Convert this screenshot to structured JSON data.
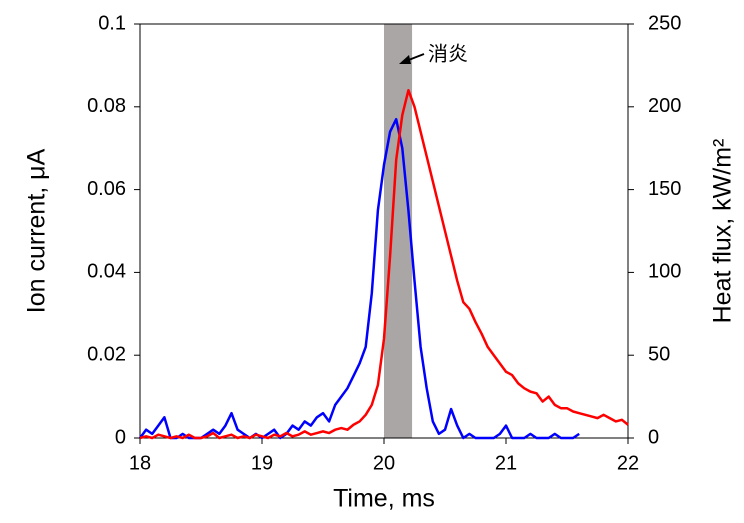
{
  "chart_data": {
    "type": "line",
    "xlabel": "Time, ms",
    "ylabel": "Ion current, μA",
    "y2label": "Heat flux, kW/m²",
    "annotation": "消炎",
    "shade": {
      "x": [
        20.0,
        20.23
      ],
      "color": "#aaa6a6"
    },
    "xlim": [
      18,
      22
    ],
    "xticks": [
      18,
      19,
      20,
      21,
      22
    ],
    "ylim": [
      0,
      0.1
    ],
    "yticks": [
      0,
      0.02,
      0.04,
      0.06,
      0.08,
      0.1
    ],
    "y2lim": [
      0,
      250
    ],
    "y2ticks": [
      0,
      50,
      100,
      150,
      200,
      250
    ],
    "grid": false,
    "x": [
      18,
      18.05,
      18.1,
      18.15,
      18.2,
      18.25,
      18.3,
      18.35,
      18.4,
      18.45,
      18.5,
      18.55,
      18.6,
      18.65,
      18.7,
      18.75,
      18.8,
      18.85,
      18.9,
      18.95,
      19,
      19.05,
      19.1,
      19.15,
      19.2,
      19.25,
      19.3,
      19.35,
      19.4,
      19.45,
      19.5,
      19.55,
      19.6,
      19.65,
      19.7,
      19.75,
      19.8,
      19.85,
      19.9,
      19.95,
      20,
      20.05,
      20.1,
      20.15,
      20.2,
      20.25,
      20.3,
      20.35,
      20.4,
      20.45,
      20.5,
      20.55,
      20.6,
      20.65,
      20.7,
      20.75,
      20.8,
      20.85,
      20.9,
      20.95,
      21,
      21.05,
      21.1,
      21.15,
      21.2,
      21.25,
      21.3,
      21.35,
      21.4,
      21.45,
      21.5,
      21.55,
      21.6,
      21.65,
      21.7,
      21.75,
      21.8,
      21.85,
      21.9,
      21.95,
      22
    ],
    "series": [
      {
        "name": "Ion current",
        "color": "#0000ff",
        "axis": "y",
        "values": [
          0,
          0.002,
          0.001,
          0.003,
          0.005,
          0,
          0,
          0.001,
          0,
          0,
          0,
          0.001,
          0.002,
          0.001,
          0.003,
          0.006,
          0.002,
          0.001,
          0,
          0.001,
          0,
          0.001,
          0.002,
          0,
          0.001,
          0.003,
          0.002,
          0.004,
          0.003,
          0.005,
          0.006,
          0.004,
          0.008,
          0.01,
          0.012,
          0.015,
          0.018,
          0.022,
          0.035,
          0.055,
          0.066,
          0.074,
          0.077,
          0.07,
          0.055,
          0.038,
          0.022,
          0.012,
          0.004,
          0.001,
          0.002,
          0.007,
          0.003,
          0,
          0.001,
          0,
          0,
          0,
          0,
          0.001,
          0.003,
          0,
          0,
          0,
          0.001,
          0,
          0,
          0,
          0.001,
          0,
          0,
          0,
          0.001,
          null,
          null,
          null,
          null,
          null,
          null,
          null,
          null
        ]
      },
      {
        "name": "Heat flux",
        "color": "#ff0000",
        "axis": "y2",
        "values": [
          0,
          1,
          0,
          2,
          1,
          0,
          1,
          0,
          2,
          0,
          0,
          1,
          3,
          0,
          1,
          2,
          0,
          1,
          0,
          2,
          1,
          0,
          2,
          1,
          3,
          1,
          2,
          4,
          2,
          3,
          4,
          3,
          5,
          6,
          5,
          8,
          10,
          14,
          20,
          32,
          60,
          110,
          168,
          195,
          210,
          200,
          185,
          170,
          155,
          140,
          125,
          110,
          95,
          82,
          78,
          70,
          63,
          55,
          50,
          45,
          40,
          38,
          33,
          30,
          28,
          27,
          22,
          25,
          20,
          18,
          18,
          16,
          15,
          14,
          13,
          12,
          14,
          12,
          10,
          11,
          8
        ]
      }
    ]
  }
}
